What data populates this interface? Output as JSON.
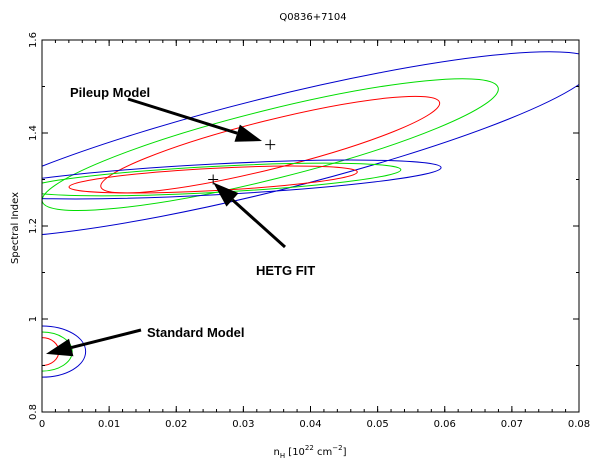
{
  "chart_data": {
    "type": "contour",
    "title": "Q0836+7104",
    "xlabel_main": "n",
    "xlabel_sub": "H",
    "xlabel_rest": " [10",
    "xlabel_exp1": "22",
    "xlabel_rest2": " cm",
    "xlabel_exp2": "−2",
    "xlabel_end": "]",
    "ylabel": "Spectral Index",
    "xlim": [
      0,
      0.08
    ],
    "ylim": [
      0.8,
      1.6
    ],
    "x_ticks": [
      "0",
      "0.01",
      "0.02",
      "0.03",
      "0.04",
      "0.05",
      "0.06",
      "0.07",
      "0.08"
    ],
    "y_ticks": [
      "0.8",
      "1",
      "1.2",
      "1.4",
      "1.6"
    ],
    "colors": {
      "red": "#ff0000",
      "green": "#00dd00",
      "blue": "#0000cc",
      "axis": "#000000"
    },
    "markers": [
      {
        "name": "pileup-best-fit",
        "x": 0.034,
        "y": 1.375
      },
      {
        "name": "hetg-best-fit",
        "x": 0.0255,
        "y": 1.3
      }
    ],
    "contour_sets": [
      {
        "name": "pileup-model",
        "center": [
          0.034,
          1.375
        ],
        "contours": [
          {
            "level": "red",
            "rx": 0.026,
            "ry": 0.052,
            "angle_deg": -14
          },
          {
            "level": "green",
            "rx": 0.035,
            "ry": 0.074,
            "angle_deg": -14
          },
          {
            "level": "blue",
            "rx": 0.05,
            "ry": 0.1,
            "angle_deg": -14
          }
        ]
      },
      {
        "name": "hetg-fit",
        "center": [
          0.0255,
          1.3
        ],
        "contours": [
          {
            "level": "red",
            "rx": 0.0215,
            "ry": 0.024,
            "angle_deg": -3
          },
          {
            "level": "green",
            "rx": 0.028,
            "ry": 0.028,
            "angle_deg": -3
          },
          {
            "level": "blue",
            "rx": 0.034,
            "ry": 0.033,
            "angle_deg": -3
          }
        ]
      },
      {
        "name": "standard-model",
        "center": [
          0.0,
          0.93
        ],
        "contours": [
          {
            "level": "red",
            "rx": 0.0025,
            "ry": 0.03,
            "angle_deg": 0
          },
          {
            "level": "green",
            "rx": 0.0045,
            "ry": 0.042,
            "angle_deg": 0
          },
          {
            "level": "blue",
            "rx": 0.0065,
            "ry": 0.055,
            "angle_deg": 0
          }
        ]
      }
    ],
    "annotations": [
      {
        "label": "Pileup Model",
        "target": [
          0.034,
          1.375
        ]
      },
      {
        "label": "HETG FIT",
        "target": [
          0.0255,
          1.3
        ]
      },
      {
        "label": "Standard Model",
        "target": [
          0.0,
          0.93
        ]
      }
    ]
  }
}
